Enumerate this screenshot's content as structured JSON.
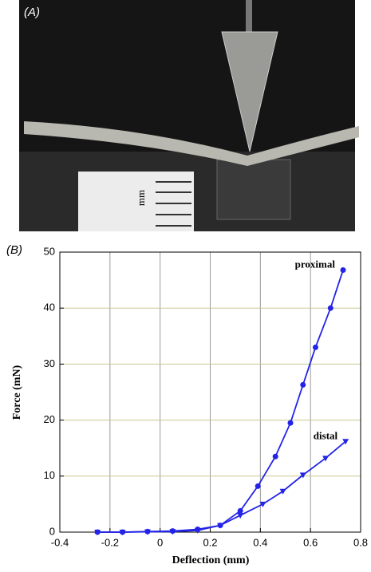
{
  "photo": {
    "label": "(A)",
    "scale_text": "mm"
  },
  "chart_data": {
    "type": "line",
    "label": "(B)",
    "xlabel": "Deflection (mm)",
    "ylabel": "Force (mN)",
    "xlim": [
      -0.4,
      0.8
    ],
    "xticks": [
      -0.4,
      -0.2,
      0,
      0.2,
      0.4,
      0.6,
      0.8
    ],
    "ylim": [
      0,
      50
    ],
    "yticks": [
      0,
      10,
      20,
      30,
      40,
      50
    ],
    "grid": true,
    "series": [
      {
        "name": "proximal",
        "color": "#2424e8",
        "marker": "circle",
        "x": [
          -0.25,
          -0.15,
          -0.05,
          0.05,
          0.15,
          0.24,
          0.32,
          0.39,
          0.46,
          0.52,
          0.57,
          0.62,
          0.68,
          0.73
        ],
        "values": [
          0,
          0,
          0.1,
          0.2,
          0.5,
          1.2,
          3.8,
          8.2,
          13.5,
          19.5,
          26.3,
          33,
          40,
          46.8
        ]
      },
      {
        "name": "distal",
        "color": "#2424e8",
        "marker": "triangle",
        "x": [
          -0.25,
          -0.15,
          -0.05,
          0.05,
          0.15,
          0.24,
          0.32,
          0.41,
          0.49,
          0.57,
          0.66,
          0.74
        ],
        "values": [
          0,
          0,
          0.05,
          0.1,
          0.3,
          1.2,
          3,
          5,
          7.3,
          10.2,
          13.2,
          16.2
        ]
      }
    ]
  }
}
